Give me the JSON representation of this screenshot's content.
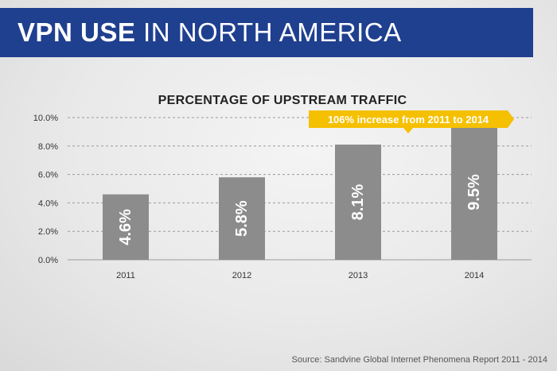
{
  "banner": {
    "title_bold": "VPN USE",
    "title_light": "IN NORTH AMERICA"
  },
  "chart_data": {
    "type": "bar",
    "title": "PERCENTAGE OF UPSTREAM TRAFFIC",
    "categories": [
      "2011",
      "2012",
      "2013",
      "2014"
    ],
    "values": [
      4.6,
      5.8,
      8.1,
      9.5
    ],
    "data_labels": [
      "4.6%",
      "5.8%",
      "8.1%",
      "9.5%"
    ],
    "yticks": [
      "0.0%",
      "2.0%",
      "4.0%",
      "6.0%",
      "8.0%",
      "10.0%"
    ],
    "ylim": [
      0,
      10
    ],
    "xlabel": "",
    "ylabel": "",
    "grid": true,
    "annotation": "106% increase from 2011 to 2014",
    "colors": {
      "bar": "#8c8c8c",
      "callout": "#f5c000",
      "banner": "#1f3f8f"
    }
  },
  "source": "Source: Sandvine Global Internet Phenomena Report 2011 - 2014"
}
